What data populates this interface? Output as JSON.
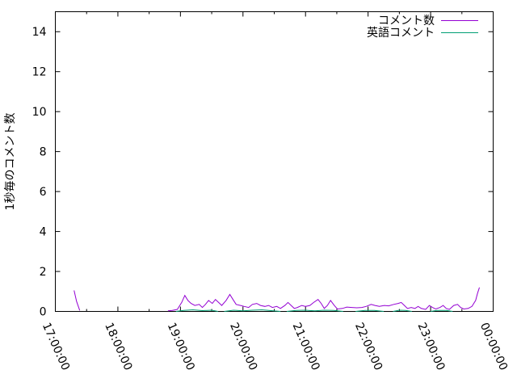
{
  "chart_data": {
    "type": "line",
    "title": "",
    "xlabel": "",
    "ylabel": "1秒毎のコメント数",
    "grid": false,
    "legend_position": "top-right-inside",
    "background_color": "#ffffff",
    "axis_color": "#000000",
    "ylim": [
      0,
      15
    ],
    "xlim_hours": [
      17,
      24
    ],
    "y_ticks": [
      {
        "v": 0,
        "label": "0"
      },
      {
        "v": 2,
        "label": "2"
      },
      {
        "v": 4,
        "label": "4"
      },
      {
        "v": 6,
        "label": "6"
      },
      {
        "v": 8,
        "label": "8"
      },
      {
        "v": 10,
        "label": "10"
      },
      {
        "v": 12,
        "label": "12"
      },
      {
        "v": 14,
        "label": "14"
      }
    ],
    "x_ticks": [
      {
        "v": 17,
        "label": "17:00:00"
      },
      {
        "v": 18,
        "label": "18:00:00"
      },
      {
        "v": 19,
        "label": "19:00:00"
      },
      {
        "v": 20,
        "label": "20:00:00"
      },
      {
        "v": 21,
        "label": "21:00:00"
      },
      {
        "v": 22,
        "label": "22:00:00"
      },
      {
        "v": 23,
        "label": "23:00:00"
      },
      {
        "v": 24,
        "label": "00:00:00"
      }
    ],
    "x_minor_ticks": [
      17.5,
      18.5,
      19.5,
      20.5,
      21.5,
      22.5,
      23.5
    ],
    "series": [
      {
        "name": "コメント数",
        "color": "#9400D3",
        "segments": [
          [
            [
              17.3,
              1.05
            ],
            [
              17.34,
              0.5
            ],
            [
              17.39,
              0.05
            ]
          ],
          [
            [
              18.8,
              0.03
            ],
            [
              18.87,
              0.05
            ],
            [
              18.95,
              0.1
            ],
            [
              19.02,
              0.45
            ],
            [
              19.07,
              0.8
            ],
            [
              19.12,
              0.55
            ],
            [
              19.17,
              0.4
            ],
            [
              19.23,
              0.3
            ],
            [
              19.3,
              0.35
            ],
            [
              19.35,
              0.2
            ],
            [
              19.4,
              0.35
            ],
            [
              19.45,
              0.55
            ],
            [
              19.51,
              0.4
            ],
            [
              19.56,
              0.6
            ],
            [
              19.61,
              0.45
            ],
            [
              19.66,
              0.3
            ],
            [
              19.73,
              0.55
            ],
            [
              19.79,
              0.85
            ],
            [
              19.84,
              0.6
            ],
            [
              19.89,
              0.35
            ],
            [
              19.96,
              0.3
            ],
            [
              20.02,
              0.25
            ],
            [
              20.09,
              0.2
            ],
            [
              20.15,
              0.35
            ],
            [
              20.22,
              0.4
            ],
            [
              20.28,
              0.3
            ],
            [
              20.35,
              0.25
            ],
            [
              20.41,
              0.3
            ],
            [
              20.47,
              0.2
            ],
            [
              20.54,
              0.25
            ],
            [
              20.6,
              0.15
            ],
            [
              20.67,
              0.3
            ],
            [
              20.72,
              0.45
            ],
            [
              20.77,
              0.3
            ],
            [
              20.82,
              0.15
            ],
            [
              20.87,
              0.2
            ],
            [
              20.94,
              0.3
            ],
            [
              21.0,
              0.25
            ],
            [
              21.07,
              0.3
            ],
            [
              21.13,
              0.45
            ],
            [
              21.2,
              0.6
            ],
            [
              21.25,
              0.4
            ],
            [
              21.3,
              0.15
            ],
            [
              21.35,
              0.3
            ],
            [
              21.4,
              0.55
            ],
            [
              21.46,
              0.3
            ],
            [
              21.51,
              0.12
            ],
            [
              21.59,
              0.15
            ],
            [
              21.66,
              0.22
            ],
            [
              21.74,
              0.2
            ],
            [
              21.82,
              0.18
            ],
            [
              21.9,
              0.2
            ],
            [
              21.97,
              0.25
            ],
            [
              22.05,
              0.35
            ],
            [
              22.11,
              0.3
            ],
            [
              22.18,
              0.25
            ],
            [
              22.26,
              0.3
            ],
            [
              22.33,
              0.28
            ],
            [
              22.41,
              0.35
            ],
            [
              22.48,
              0.4
            ],
            [
              22.53,
              0.45
            ],
            [
              22.58,
              0.3
            ],
            [
              22.63,
              0.15
            ],
            [
              22.69,
              0.2
            ],
            [
              22.75,
              0.15
            ],
            [
              22.8,
              0.25
            ],
            [
              22.85,
              0.15
            ],
            [
              22.92,
              0.1
            ],
            [
              22.98,
              0.3
            ],
            [
              23.03,
              0.2
            ],
            [
              23.08,
              0.12
            ],
            [
              23.15,
              0.2
            ],
            [
              23.2,
              0.3
            ],
            [
              23.25,
              0.15
            ],
            [
              23.3,
              0.1
            ],
            [
              23.37,
              0.3
            ],
            [
              23.43,
              0.35
            ],
            [
              23.48,
              0.2
            ],
            [
              23.53,
              0.12
            ],
            [
              23.6,
              0.15
            ],
            [
              23.66,
              0.25
            ],
            [
              23.72,
              0.55
            ],
            [
              23.75,
              0.9
            ],
            [
              23.78,
              1.2
            ]
          ]
        ]
      },
      {
        "name": "英語コメント",
        "color": "#009E73",
        "segments": [
          [
            [
              18.93,
              0.0
            ],
            [
              19.05,
              0.05
            ],
            [
              19.2,
              0.08
            ],
            [
              19.35,
              0.04
            ],
            [
              19.5,
              0.06
            ],
            [
              19.6,
              0.0
            ]
          ],
          [
            [
              19.7,
              0.0
            ],
            [
              19.85,
              0.06
            ],
            [
              20.0,
              0.03
            ],
            [
              20.15,
              0.06
            ],
            [
              20.3,
              0.08
            ],
            [
              20.45,
              0.04
            ],
            [
              20.6,
              0.0
            ]
          ],
          [
            [
              20.7,
              0.0
            ],
            [
              20.85,
              0.05
            ],
            [
              21.0,
              0.06
            ],
            [
              21.15,
              0.03
            ],
            [
              21.3,
              0.06
            ],
            [
              21.45,
              0.05
            ],
            [
              21.6,
              0.0
            ]
          ],
          [
            [
              21.8,
              0.0
            ],
            [
              21.95,
              0.05
            ],
            [
              22.1,
              0.05
            ],
            [
              22.25,
              0.0
            ]
          ],
          [
            [
              22.4,
              0.0
            ],
            [
              22.5,
              0.06
            ],
            [
              22.6,
              0.05
            ],
            [
              22.7,
              0.0
            ]
          ],
          [
            [
              23.0,
              0.0
            ],
            [
              23.1,
              0.05
            ],
            [
              23.25,
              0.05
            ],
            [
              23.35,
              0.0
            ]
          ]
        ]
      }
    ]
  }
}
